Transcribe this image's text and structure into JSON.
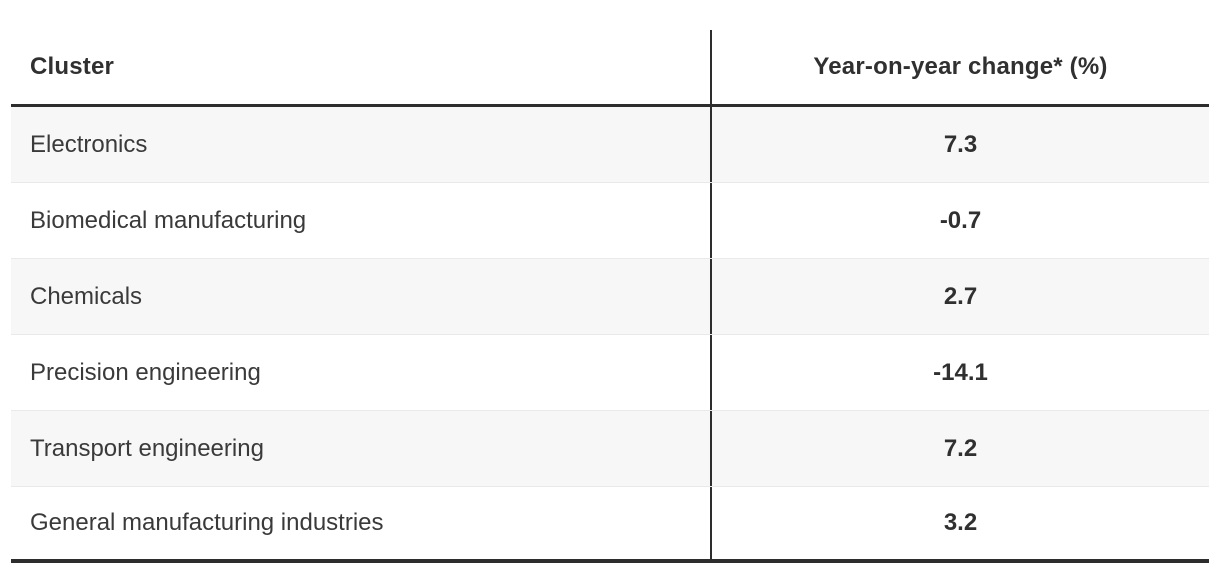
{
  "colors": {
    "border_dark": "#2d2d2d",
    "divider": "#e9e9e9",
    "row_stripe": "#f7f7f7",
    "text": "#3a3a3a",
    "text_bold": "#303030",
    "page_bg": "#ffffff"
  },
  "table": {
    "columns": [
      {
        "label": "Cluster"
      },
      {
        "label": "Year-on-year change* (%)"
      }
    ],
    "rows": [
      {
        "cluster": "Electronics",
        "value": "7.3"
      },
      {
        "cluster": "Biomedical manufacturing",
        "value": "-0.7"
      },
      {
        "cluster": "Chemicals",
        "value": "2.7"
      },
      {
        "cluster": "Precision engineering",
        "value": "-14.1"
      },
      {
        "cluster": "Transport engineering",
        "value": "7.2"
      },
      {
        "cluster": "General manufacturing industries",
        "value": "3.2"
      }
    ]
  },
  "chart_data": {
    "type": "table",
    "title": "",
    "columns": [
      "Cluster",
      "Year-on-year change* (%)"
    ],
    "rows": [
      [
        "Electronics",
        7.3
      ],
      [
        "Biomedical manufacturing",
        -0.7
      ],
      [
        "Chemicals",
        2.7
      ],
      [
        "Precision engineering",
        -14.1
      ],
      [
        "Transport engineering",
        7.2
      ],
      [
        "General manufacturing industries",
        3.2
      ]
    ],
    "layout": {
      "zebra_striping": true,
      "value_column_align": "center",
      "label_column_align": "left"
    }
  }
}
